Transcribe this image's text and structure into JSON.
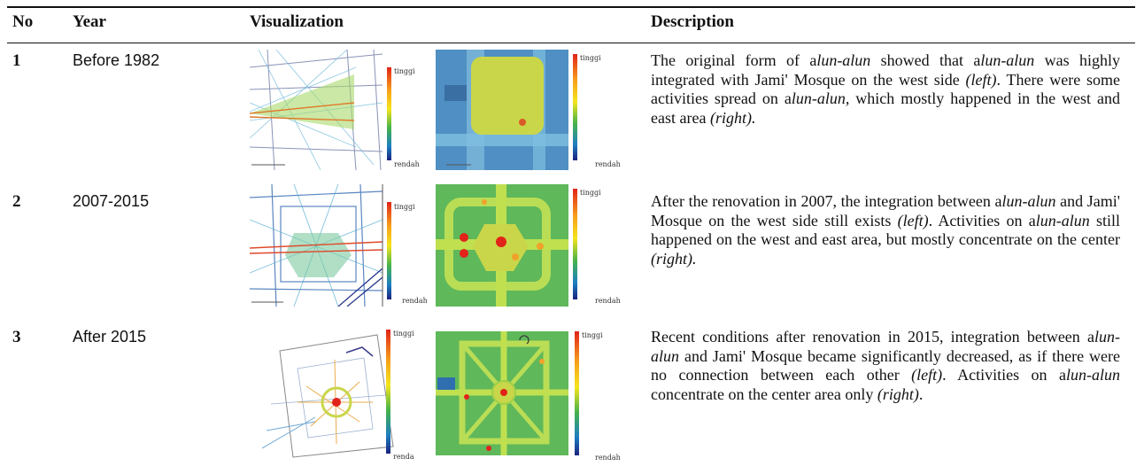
{
  "table": {
    "headers": {
      "no": "No",
      "year": "Year",
      "visualization": "Visualization",
      "description": "Description"
    },
    "legend": {
      "high": "tinggi",
      "low": "rendah",
      "low_cropped": "renda"
    },
    "rows": [
      {
        "no": "1",
        "year": "Before 1982",
        "description": [
          {
            "t": "The original form of a",
            "i": false
          },
          {
            "t": "lun-alun",
            "i": true
          },
          {
            "t": " showed that a",
            "i": false
          },
          {
            "t": "lun-alun",
            "i": true
          },
          {
            "t": " was highly integrated with Jami' Mosque on the west side ",
            "i": false
          },
          {
            "t": "(left)",
            "i": true
          },
          {
            "t": ". There were some activities spread on a",
            "i": false
          },
          {
            "t": "lun-alun,",
            "i": true
          },
          {
            "t": " which mostly happened in the west and east area ",
            "i": false
          },
          {
            "t": "(right).",
            "i": true
          }
        ]
      },
      {
        "no": "2",
        "year": "2007-2015",
        "description": [
          {
            "t": "After the renovation in 2007, the integration between a",
            "i": false
          },
          {
            "t": "lun-alun",
            "i": true
          },
          {
            "t": " and Jami' Mosque on the west side still exists ",
            "i": false
          },
          {
            "t": "(left)",
            "i": true
          },
          {
            "t": ". Activities on a",
            "i": false
          },
          {
            "t": "lun-alun",
            "i": true
          },
          {
            "t": " still happened on the west and east area, but mostly concentrate on the center ",
            "i": false
          },
          {
            "t": "(right).",
            "i": true
          }
        ]
      },
      {
        "no": "3",
        "year": "After 2015",
        "description": [
          {
            "t": "Recent conditions after renovation in 2015, integration between a",
            "i": false
          },
          {
            "t": "lun-alun",
            "i": true
          },
          {
            "t": " and Jami' Mosque became significantly decreased, as if there were no connection between each other ",
            "i": false
          },
          {
            "t": "(left)",
            "i": true
          },
          {
            "t": ". Activities on a",
            "i": false
          },
          {
            "t": "lun-alun",
            "i": true
          },
          {
            "t": " concentrate on the center area only ",
            "i": false
          },
          {
            "t": "(right)",
            "i": true
          },
          {
            "t": ".",
            "i": false
          }
        ]
      }
    ]
  },
  "colors": {
    "rule": "#111111",
    "line_map_bg": "#ffffff",
    "heat_blue": "#2f6fb0",
    "heat_green": "#8cc63f",
    "heat_yellow": "#c9d64a",
    "heat_red": "#e2231a"
  }
}
